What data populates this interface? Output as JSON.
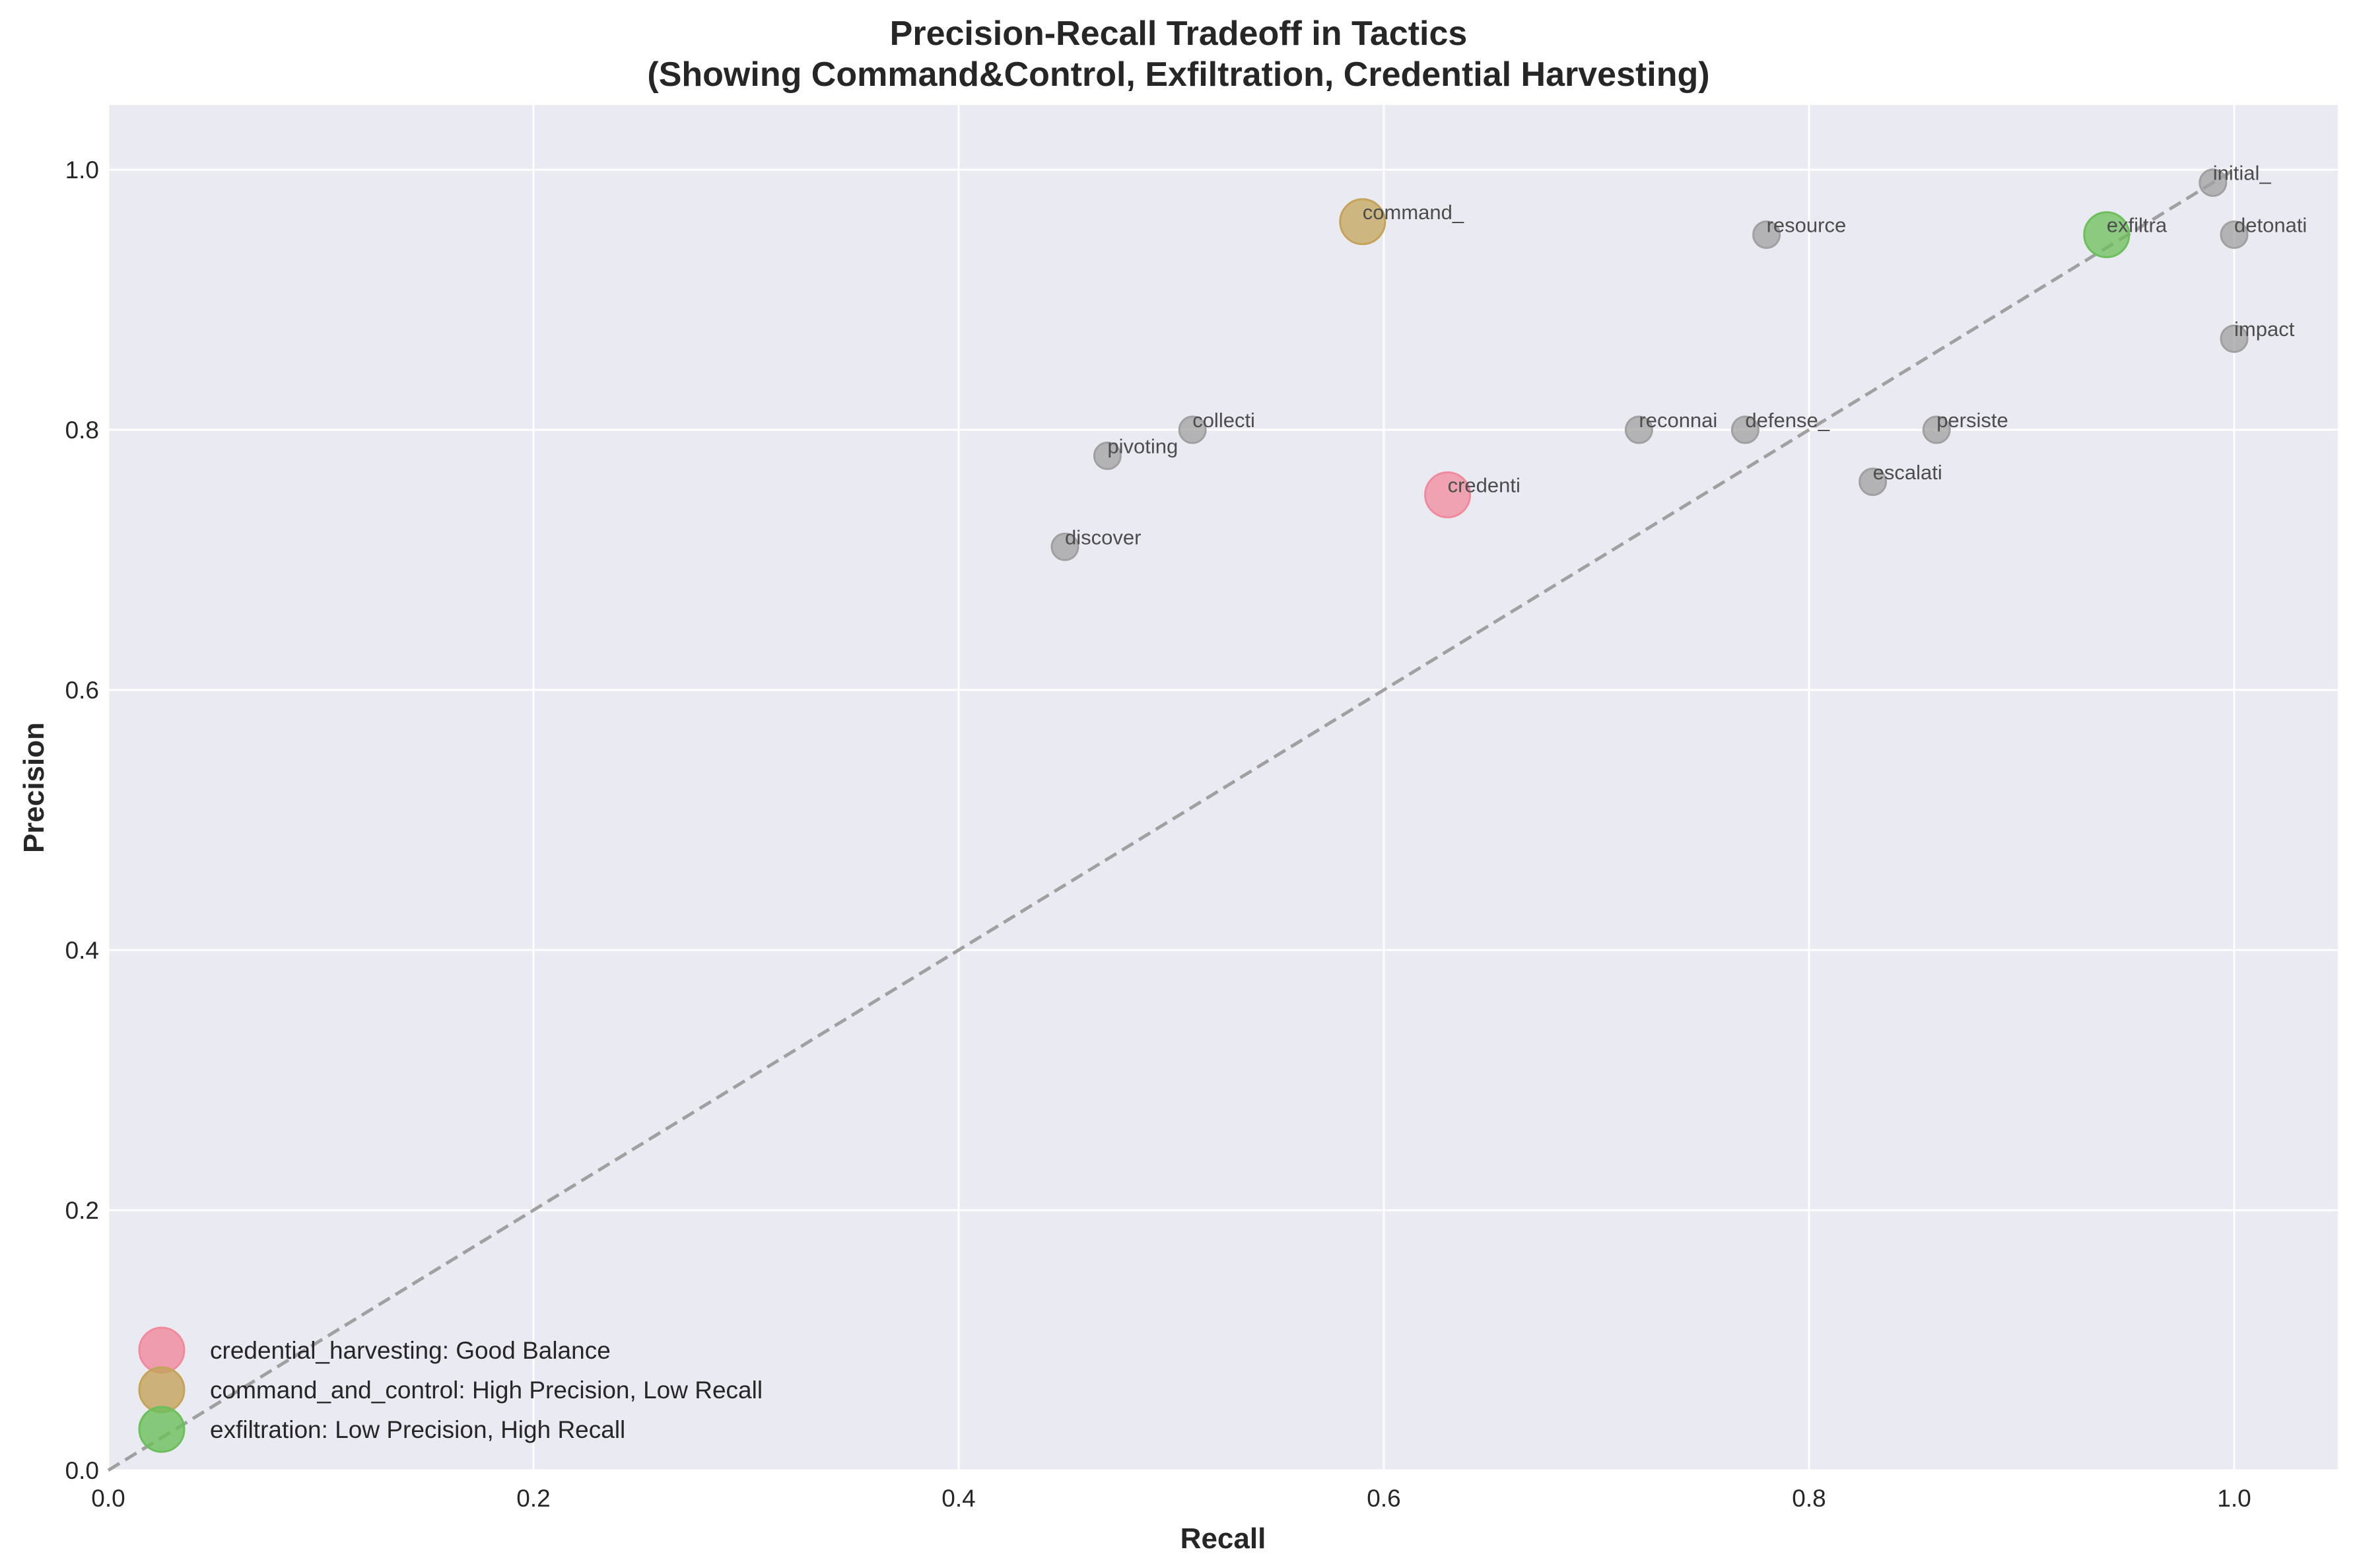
{
  "chart_data": {
    "type": "scatter",
    "title": "Precision-Recall Tradeoff in Tactics",
    "subtitle": "(Showing Command&Control, Exfiltration, Credential Harvesting)",
    "xlabel": "Recall",
    "ylabel": "Precision",
    "xlim": [
      0,
      1.05
    ],
    "ylim": [
      0,
      1.05
    ],
    "xticks": [
      "0.0",
      "0.2",
      "0.4",
      "0.6",
      "0.8",
      "1.0"
    ],
    "yticks": [
      "0.0",
      "0.2",
      "0.4",
      "0.6",
      "0.8",
      "1.0"
    ],
    "grid": true,
    "background": "#eaeaf2",
    "reference_line": {
      "type": "diagonal",
      "style": "dashed",
      "color": "#999999",
      "from": [
        0,
        0
      ],
      "to": [
        1,
        1
      ]
    },
    "legend_position": "lower left",
    "legend": [
      {
        "label": "credential_harvesting: Good Balance",
        "color": "#f08a9c"
      },
      {
        "label": "command_and_control: High Precision, Low Recall",
        "color": "#c4a45a"
      },
      {
        "label": "exfiltration: Low Precision, High Recall",
        "color": "#6cbf5a"
      }
    ],
    "points": [
      {
        "label": "initial_",
        "recall": 0.99,
        "precision": 0.99,
        "highlight": false
      },
      {
        "label": "detonati",
        "recall": 1.0,
        "precision": 0.95,
        "highlight": false
      },
      {
        "label": "impact",
        "recall": 1.0,
        "precision": 0.87,
        "highlight": false
      },
      {
        "label": "exfiltra",
        "recall": 0.94,
        "precision": 0.95,
        "highlight": true,
        "color": "#6cbf5a"
      },
      {
        "label": "resource",
        "recall": 0.78,
        "precision": 0.95,
        "highlight": false
      },
      {
        "label": "command_",
        "recall": 0.59,
        "precision": 0.96,
        "highlight": true,
        "color": "#c4a45a"
      },
      {
        "label": "collecti",
        "recall": 0.51,
        "precision": 0.8,
        "highlight": false
      },
      {
        "label": "pivoting",
        "recall": 0.47,
        "precision": 0.78,
        "highlight": false
      },
      {
        "label": "discover",
        "recall": 0.45,
        "precision": 0.71,
        "highlight": false
      },
      {
        "label": "credenti",
        "recall": 0.63,
        "precision": 0.75,
        "highlight": true,
        "color": "#f08a9c"
      },
      {
        "label": "reconnai",
        "recall": 0.72,
        "precision": 0.8,
        "highlight": false
      },
      {
        "label": "defense_",
        "recall": 0.77,
        "precision": 0.8,
        "highlight": false
      },
      {
        "label": "persiste",
        "recall": 0.86,
        "precision": 0.8,
        "highlight": false
      },
      {
        "label": "escalati",
        "recall": 0.83,
        "precision": 0.76,
        "highlight": false
      }
    ]
  }
}
